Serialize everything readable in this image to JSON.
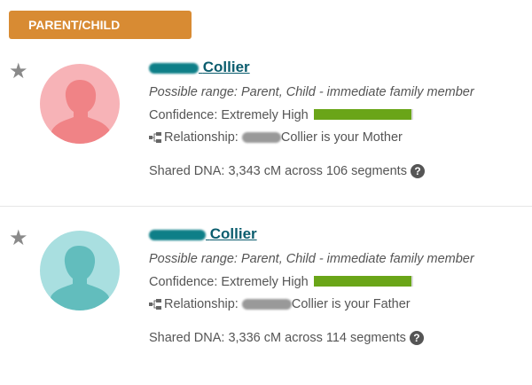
{
  "section_label": "PARENT/CHILD",
  "colors": {
    "badge": "#d88b33",
    "confidence_bar": "#6aa518",
    "name_link": "#0b5d6e",
    "mother_avatar": "#f5a6aa",
    "father_avatar": "#7fcfcf"
  },
  "matches": [
    {
      "name_suffix": "Collier",
      "possible_range": "Possible range: Parent, Child - immediate family member",
      "confidence": "Confidence: Extremely High",
      "confidence_level": "Extremely High",
      "relationship_label": "Relationship:",
      "relationship_text": "Collier is your Mother",
      "shared_dna": "Shared DNA: 3,343 cM across 106 segments",
      "avatar": "female-silhouette-icon"
    },
    {
      "name_suffix": "Collier",
      "possible_range": "Possible range: Parent, Child - immediate family member",
      "confidence": "Confidence: Extremely High",
      "confidence_level": "Extremely High",
      "relationship_label": "Relationship:",
      "relationship_text": "Collier is your Father",
      "shared_dna": "Shared DNA: 3,336 cM across 114 segments",
      "avatar": "male-silhouette-icon"
    }
  ],
  "help_glyph": "?"
}
